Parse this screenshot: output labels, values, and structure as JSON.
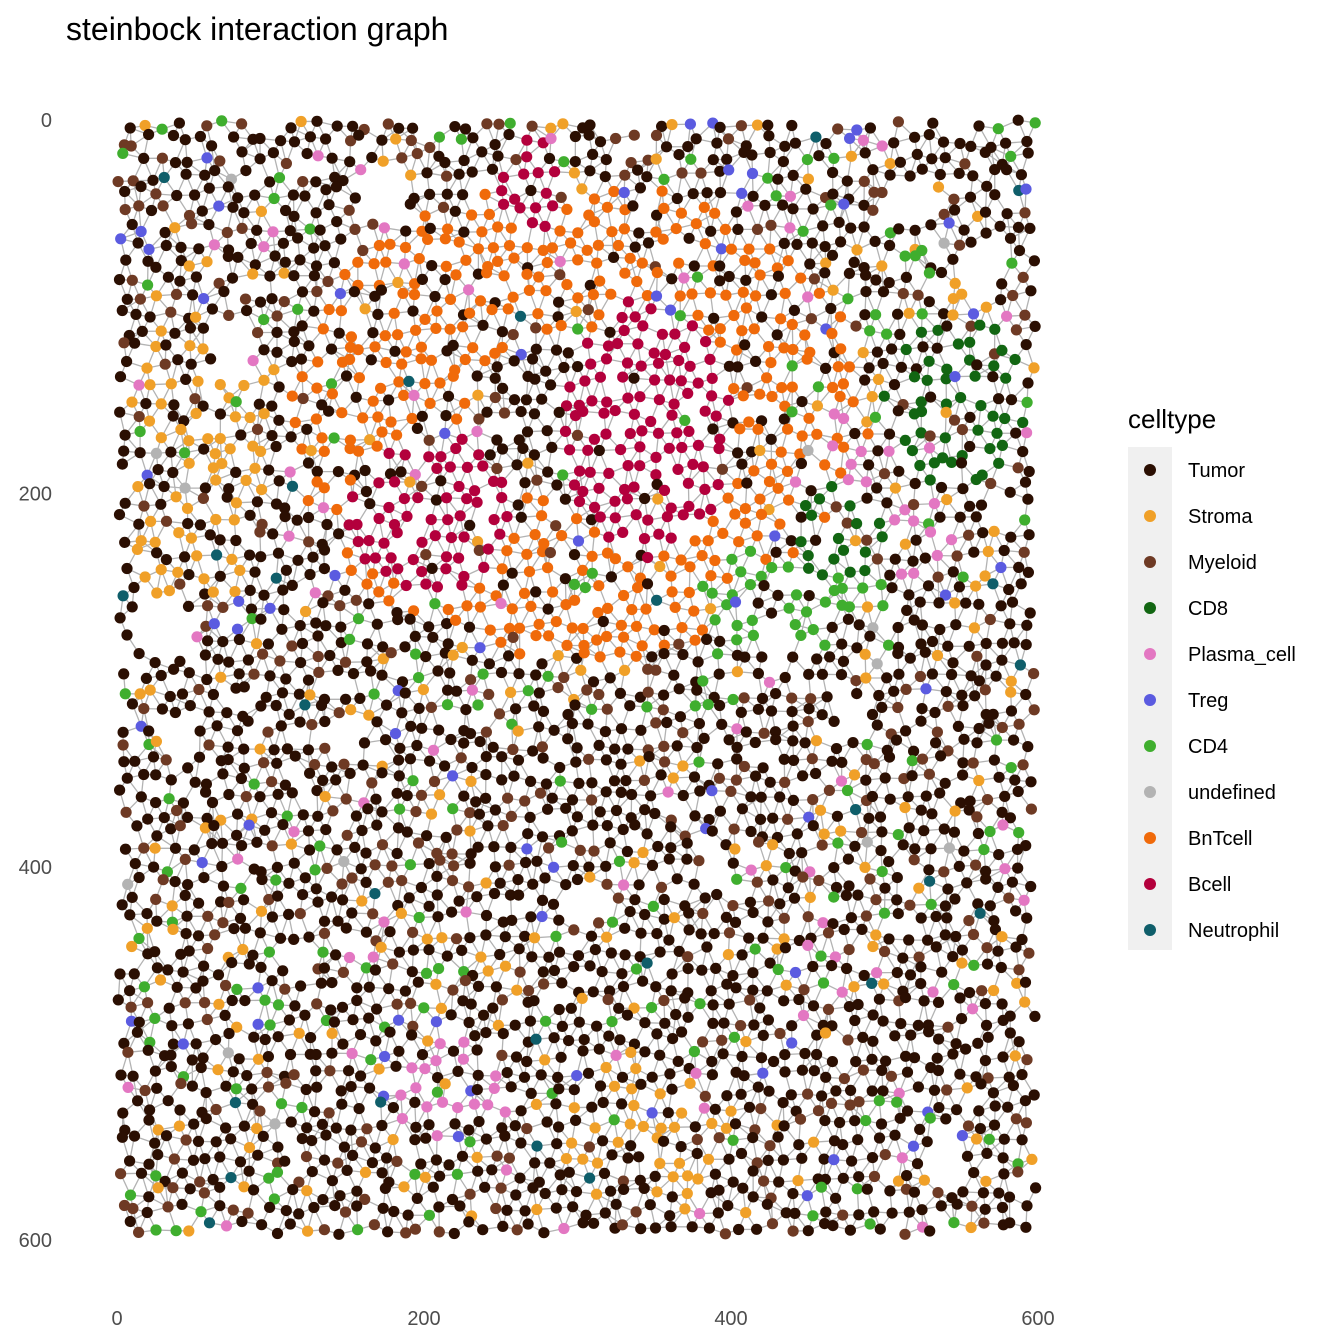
{
  "chart_data": {
    "type": "scatter",
    "title": "steinbock interaction graph",
    "xlabel": "",
    "ylabel": "",
    "xlim": [
      0,
      600
    ],
    "ylim": [
      600,
      0
    ],
    "y_axis_reversed": true,
    "x_ticks": [
      0,
      200,
      400,
      600
    ],
    "y_ticks": [
      0,
      200,
      400,
      600
    ],
    "grid": false,
    "legend": {
      "title": "celltype",
      "placement": "right",
      "entries": [
        {
          "name": "Tumor",
          "color": "#2B0F02"
        },
        {
          "name": "Stroma",
          "color": "#F0A028"
        },
        {
          "name": "Myeloid",
          "color": "#6E3A24"
        },
        {
          "name": "CD8",
          "color": "#126612"
        },
        {
          "name": "Plasma_cell",
          "color": "#E377C2"
        },
        {
          "name": "Treg",
          "color": "#5B5BE0"
        },
        {
          "name": "CD4",
          "color": "#3FAE2E"
        },
        {
          "name": "undefined",
          "color": "#B3B3B3"
        },
        {
          "name": "BnTcell",
          "color": "#F06A0A"
        },
        {
          "name": "Bcell",
          "color": "#B3003C"
        },
        {
          "name": "Neutrophil",
          "color": "#0F5E6A"
        }
      ]
    },
    "regions": [
      {
        "celltype": "Bcell",
        "center": [
          205,
          210
        ],
        "radius": [
          55,
          42
        ]
      },
      {
        "celltype": "Bcell",
        "center": [
          345,
          165
        ],
        "radius": [
          55,
          70
        ]
      },
      {
        "celltype": "Bcell",
        "center": [
          270,
          35
        ],
        "radius": [
          20,
          25
        ]
      },
      {
        "celltype": "BnTcell",
        "center": [
          300,
          160
        ],
        "radius": [
          190,
          130
        ]
      },
      {
        "celltype": "CD8",
        "center": [
          545,
          150
        ],
        "radius": [
          50,
          45
        ]
      },
      {
        "celltype": "CD8",
        "center": [
          470,
          220
        ],
        "radius": [
          35,
          25
        ]
      },
      {
        "celltype": "CD4",
        "center": [
          440,
          255
        ],
        "radius": [
          60,
          30
        ]
      },
      {
        "celltype": "Plasma_cell",
        "center": [
          520,
          185
        ],
        "radius": [
          60,
          60
        ]
      },
      {
        "celltype": "Plasma_cell",
        "center": [
          220,
          515
        ],
        "radius": [
          45,
          25
        ]
      },
      {
        "celltype": "Stroma",
        "center": [
          45,
          185
        ],
        "radius": [
          50,
          80
        ]
      },
      {
        "celltype": "Stroma",
        "center": [
          345,
          545
        ],
        "radius": [
          55,
          40
        ]
      }
    ]
  }
}
